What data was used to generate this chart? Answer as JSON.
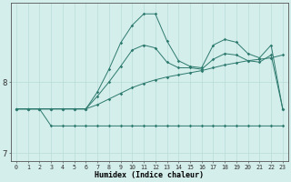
{
  "xlabel": "Humidex (Indice chaleur)",
  "x": [
    0,
    1,
    2,
    3,
    4,
    5,
    6,
    7,
    8,
    9,
    10,
    11,
    12,
    13,
    14,
    15,
    16,
    17,
    18,
    19,
    20,
    21,
    22,
    23
  ],
  "line_bottom": [
    7.62,
    7.62,
    7.62,
    7.38,
    7.38,
    7.38,
    7.38,
    7.38,
    7.38,
    7.38,
    7.38,
    7.38,
    7.38,
    7.38,
    7.38,
    7.38,
    7.38,
    7.38,
    7.38,
    7.38,
    7.38,
    7.38,
    7.38,
    7.38
  ],
  "line_gradual": [
    7.62,
    7.62,
    7.62,
    7.62,
    7.62,
    7.62,
    7.62,
    7.68,
    7.76,
    7.84,
    7.92,
    7.98,
    8.03,
    8.07,
    8.1,
    8.13,
    8.16,
    8.2,
    8.24,
    8.27,
    8.3,
    8.32,
    8.34,
    8.38
  ],
  "line_mid": [
    7.62,
    7.62,
    7.62,
    7.62,
    7.62,
    7.62,
    7.62,
    7.8,
    8.0,
    8.22,
    8.45,
    8.52,
    8.48,
    8.28,
    8.2,
    8.2,
    8.18,
    8.32,
    8.4,
    8.38,
    8.3,
    8.28,
    8.38,
    7.62
  ],
  "line_high": [
    7.62,
    7.62,
    7.62,
    7.62,
    7.62,
    7.62,
    7.62,
    7.86,
    8.18,
    8.55,
    8.8,
    8.96,
    8.96,
    8.58,
    8.3,
    8.22,
    8.2,
    8.52,
    8.6,
    8.56,
    8.4,
    8.34,
    8.52,
    7.62
  ],
  "line_color": "#2d7a6e",
  "bg_color": "#d4eeeb",
  "grid_color": "#b8dcd8",
  "ylim": [
    6.88,
    9.12
  ],
  "yticks": [
    7.0,
    8.0
  ],
  "xticks": [
    0,
    1,
    2,
    3,
    4,
    5,
    6,
    7,
    8,
    9,
    10,
    11,
    12,
    13,
    14,
    15,
    16,
    17,
    18,
    19,
    20,
    21,
    22,
    23
  ],
  "figsize": [
    3.2,
    2.0
  ],
  "dpi": 100
}
